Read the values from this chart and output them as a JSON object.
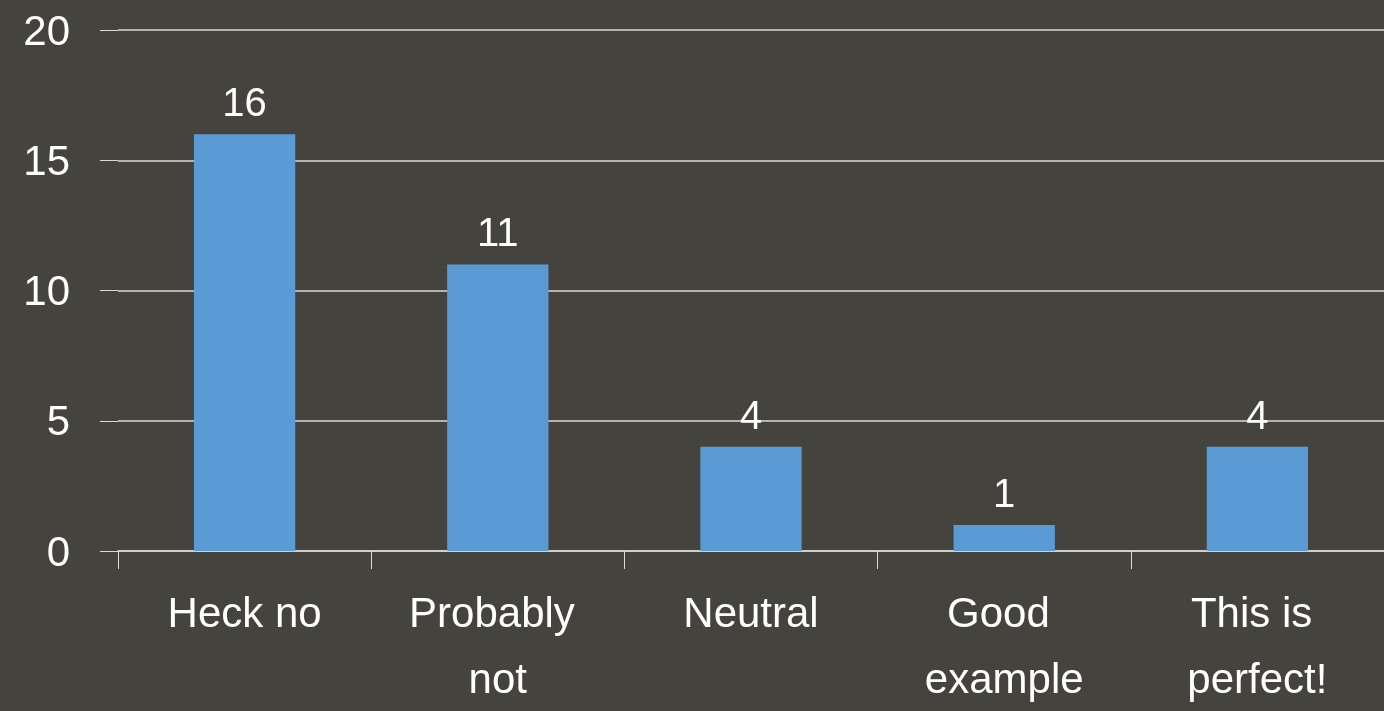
{
  "chart_data": {
    "type": "bar",
    "categories": [
      "Heck no",
      "Probably not",
      "Neutral",
      "Good example",
      "This is perfect!"
    ],
    "values": [
      16,
      11,
      4,
      1,
      4
    ],
    "color": "#5b9bd5",
    "ylim": [
      0,
      20
    ],
    "yticks": [
      0,
      5,
      10,
      15,
      20
    ],
    "grid": "y",
    "data_labels": true
  }
}
